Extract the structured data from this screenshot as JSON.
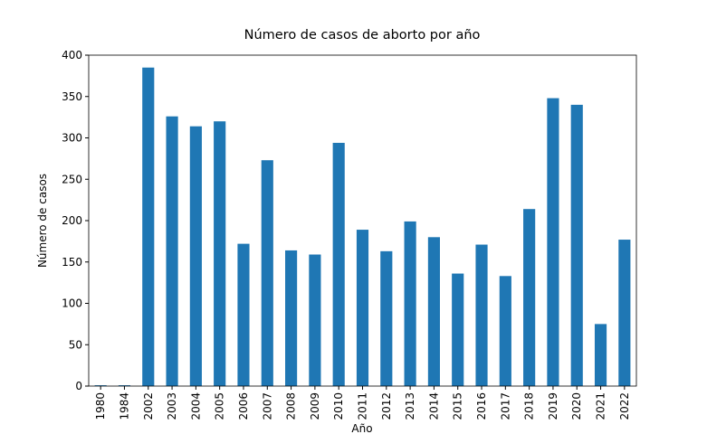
{
  "chart_data": {
    "type": "bar",
    "title": "Número de casos de aborto por año",
    "xlabel": "Año",
    "ylabel": "Número de casos",
    "categories": [
      "1980",
      "1984",
      "2002",
      "2003",
      "2004",
      "2005",
      "2006",
      "2007",
      "2008",
      "2009",
      "2010",
      "2011",
      "2012",
      "2013",
      "2014",
      "2015",
      "2016",
      "2017",
      "2018",
      "2019",
      "2020",
      "2021",
      "2022"
    ],
    "values": [
      1,
      1,
      385,
      326,
      314,
      320,
      172,
      273,
      164,
      159,
      294,
      189,
      163,
      199,
      180,
      136,
      171,
      133,
      214,
      348,
      340,
      75,
      177
    ],
    "color": "#1f77b4",
    "ylim": [
      0,
      400
    ],
    "yticks": [
      0,
      50,
      100,
      150,
      200,
      250,
      300,
      350,
      400
    ],
    "grid": false
  }
}
